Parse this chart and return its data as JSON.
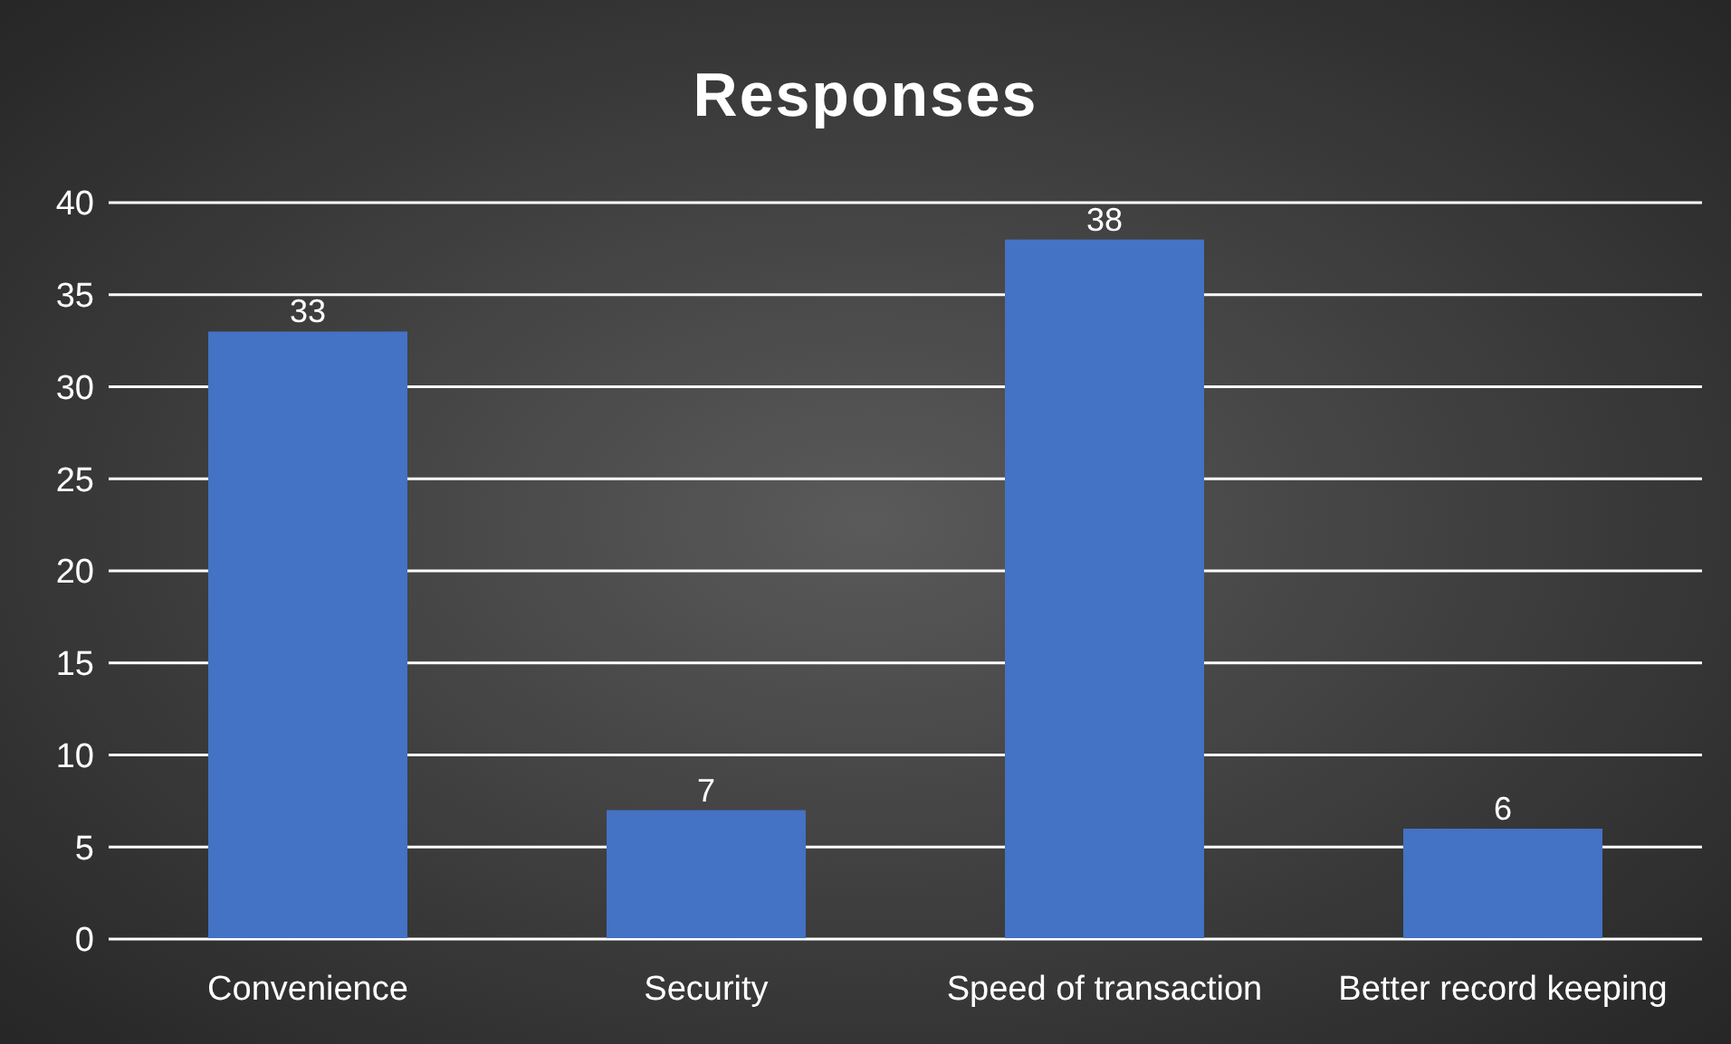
{
  "chart_data": {
    "type": "bar",
    "title": "Responses",
    "categories": [
      "Convenience",
      "Security",
      "Speed of transaction",
      "Better record keeping"
    ],
    "values": [
      33,
      7,
      38,
      6
    ],
    "color": "#4472c4",
    "ylim": [
      0,
      40
    ],
    "yticks": [
      0,
      5,
      10,
      15,
      20,
      25,
      30,
      35,
      40
    ],
    "grid": "y",
    "data_labels": true
  }
}
